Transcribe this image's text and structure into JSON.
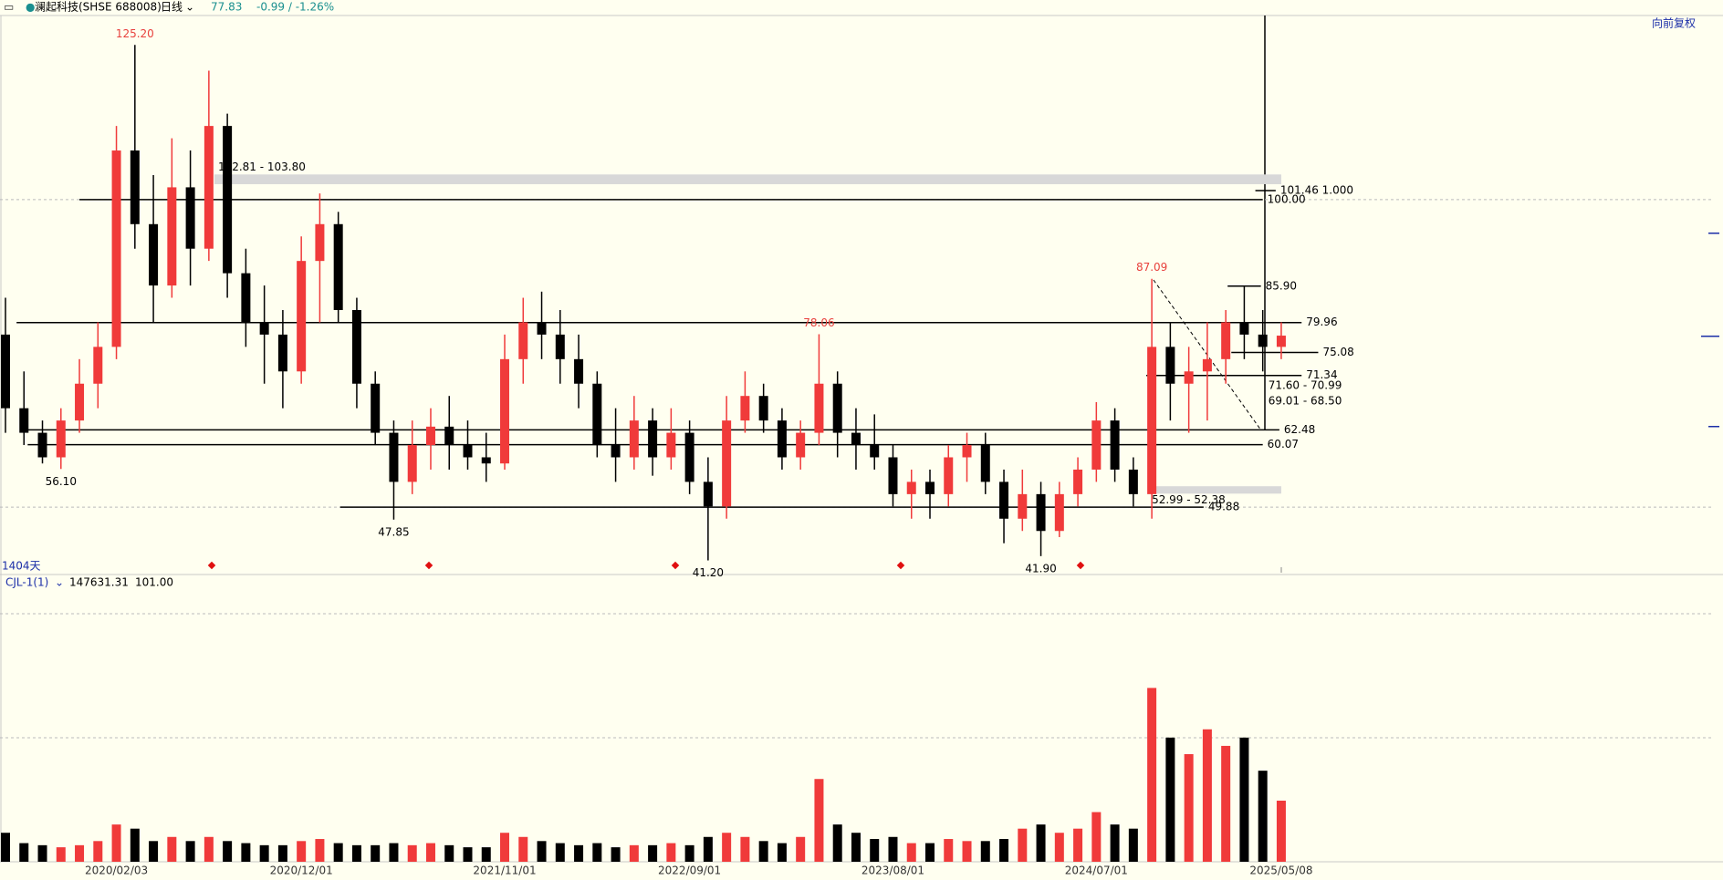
{
  "header": {
    "stock": "澜起科技(SHSE 688008)",
    "period": "日线",
    "price": "77.83",
    "change": "-0.99 / -1.26%",
    "adjust": "向前复权",
    "days": "1404天",
    "indicator": "CJL-1(1)",
    "indicator_value2": "101.00"
  },
  "chart_data": {
    "type": "candlestick",
    "categories": [
      null,
      null,
      null,
      null,
      null,
      null,
      "2020/02/03",
      null,
      null,
      null,
      null,
      null,
      null,
      null,
      null,
      null,
      "2020/12/01",
      null,
      null,
      null,
      null,
      null,
      null,
      null,
      null,
      null,
      null,
      "2021/11/01",
      null,
      null,
      null,
      null,
      null,
      null,
      null,
      null,
      null,
      "2022/09/01",
      null,
      null,
      null,
      null,
      null,
      null,
      null,
      null,
      null,
      null,
      "2023/08/01",
      null,
      null,
      null,
      null,
      null,
      null,
      null,
      null,
      null,
      null,
      "2024/07/01",
      null,
      null,
      null,
      null,
      null,
      null,
      null,
      null,
      null,
      "2025/05/08"
    ],
    "open": [
      78,
      66,
      62,
      58,
      64,
      70,
      76,
      108,
      96,
      86,
      102,
      92,
      112,
      88,
      80,
      78,
      72,
      90,
      96,
      82,
      70,
      62,
      54,
      60,
      63,
      60,
      58,
      57,
      74,
      80,
      78,
      74,
      70,
      60,
      58,
      64,
      58,
      62,
      54,
      50,
      64,
      68,
      64,
      58,
      62,
      70,
      62,
      60,
      58,
      52,
      54,
      52,
      58,
      60,
      54,
      48,
      52,
      46,
      52,
      56,
      64,
      56,
      52,
      76,
      70,
      72,
      74,
      80,
      78,
      76
    ],
    "high": [
      84,
      72,
      64,
      66,
      74,
      80,
      112,
      125.2,
      104,
      110,
      108,
      121,
      114,
      92,
      86,
      82,
      94,
      101,
      98,
      84,
      72,
      64,
      64,
      66,
      68,
      64,
      62,
      78,
      84,
      85,
      82,
      78,
      72,
      66,
      68,
      66,
      66,
      64,
      58,
      68,
      72,
      70,
      66,
      64,
      78.06,
      72,
      66,
      65,
      60,
      56,
      56,
      60,
      62,
      62,
      56,
      56,
      54,
      54,
      58,
      67,
      66,
      58,
      87.09,
      80,
      76,
      80,
      82,
      85.9,
      82,
      80
    ],
    "low": [
      62,
      60,
      57,
      56.1,
      62,
      66,
      74,
      92,
      80,
      84,
      86,
      90,
      84,
      76,
      70,
      66,
      70,
      80,
      80,
      66,
      60,
      47.85,
      52,
      56,
      56,
      56,
      54,
      56,
      70,
      74,
      70,
      66,
      58,
      54,
      56,
      55,
      56,
      52,
      41.2,
      48,
      62,
      62,
      56,
      56,
      60,
      58,
      56,
      56,
      50,
      48,
      48,
      50,
      54,
      52,
      44,
      46,
      41.9,
      45,
      50,
      54,
      54,
      50,
      48,
      64,
      62,
      64,
      70,
      74,
      72,
      74
    ],
    "close": [
      66,
      62,
      58,
      64,
      70,
      76,
      108,
      96,
      86,
      102,
      92,
      112,
      88,
      80,
      78,
      72,
      90,
      96,
      82,
      70,
      62,
      54,
      60,
      63,
      60,
      58,
      57,
      74,
      80,
      78,
      74,
      70,
      60,
      58,
      64,
      58,
      62,
      54,
      50,
      64,
      68,
      64,
      58,
      62,
      70,
      62,
      60,
      58,
      52,
      54,
      52,
      58,
      60,
      54,
      48,
      52,
      46,
      52,
      56,
      64,
      56,
      52,
      76,
      70,
      72,
      74,
      80,
      78,
      76,
      77.83
    ],
    "up_color": "#f03a3a",
    "down_color": "#000000",
    "ylim": [
      39.2,
      130
    ],
    "volume": {
      "values": [
        70000,
        45000,
        40000,
        35000,
        40000,
        50000,
        90000,
        80000,
        50000,
        60000,
        50000,
        60000,
        50000,
        45000,
        40000,
        40000,
        50000,
        55000,
        45000,
        40000,
        40000,
        45000,
        40000,
        45000,
        40000,
        35000,
        35000,
        70000,
        60000,
        50000,
        45000,
        40000,
        45000,
        35000,
        40000,
        40000,
        45000,
        40000,
        60000,
        70000,
        60000,
        50000,
        45000,
        60000,
        200000,
        90000,
        70000,
        55000,
        60000,
        45000,
        45000,
        55000,
        50000,
        50000,
        55000,
        80000,
        90000,
        70000,
        80000,
        120000,
        90000,
        80000,
        420000,
        300000,
        260000,
        320000,
        280000,
        300000,
        220000,
        147631.31
      ],
      "ylim": [
        0,
        650000
      ]
    },
    "levels": [
      {
        "value": 100,
        "label": "100.00",
        "from": 4,
        "to": 68,
        "grid": true
      },
      {
        "value": 101.46,
        "label": "101.46  1.000",
        "from": 67.6,
        "to": 68.7
      },
      {
        "value": 85.9,
        "label": "85.90",
        "from": 66.1,
        "to": 67.9
      },
      {
        "value": 79.96,
        "label": "79.96",
        "from": 0.6,
        "to": 70.1
      },
      {
        "value": 75.08,
        "label": "75.08",
        "from": 66.3,
        "to": 71
      },
      {
        "value": 71.34,
        "label": "71.34",
        "from": 61.7,
        "to": 70.1
      },
      {
        "value": 62.48,
        "label": "62.48",
        "from": 1,
        "to": 68.9
      },
      {
        "value": 60.07,
        "label": "60.07",
        "from": 1.2,
        "to": 68
      },
      {
        "value": 49.88,
        "label": "49.88",
        "from": 18.1,
        "to": 64.8,
        "grid": true
      }
    ],
    "bands": [
      {
        "low": 102.81,
        "high": 103.8,
        "label": "102.81 - 103.80",
        "from": 11.3,
        "to": 69,
        "label_side": "above",
        "shaded": true
      },
      {
        "low": 52.38,
        "high": 52.99,
        "label": "52.99 - 52.38",
        "from": 61.8,
        "to": 69,
        "label_side": "below",
        "shaded": true
      },
      {
        "low": 70.99,
        "high": 71.6,
        "label": "71.60 - 70.99",
        "from": 68.1,
        "to": 69,
        "label_side": "below",
        "shaded": false
      },
      {
        "low": 68.5,
        "high": 69.01,
        "label": "69.01 - 68.50",
        "from": 68.1,
        "to": 69,
        "label_side": "below",
        "shaded": false
      }
    ],
    "price_marks": [
      {
        "index": 7,
        "value": 125.2,
        "label": "125.20",
        "side": "above",
        "color": "#e8413c"
      },
      {
        "index": 3,
        "value": 56.1,
        "label": "56.10",
        "side": "below",
        "color": "#000000"
      },
      {
        "index": 21,
        "value": 47.85,
        "label": "47.85",
        "side": "below",
        "color": "#000000"
      },
      {
        "index": 38,
        "value": 41.2,
        "label": "41.20",
        "side": "below",
        "color": "#000000"
      },
      {
        "index": 56,
        "value": 41.9,
        "label": "41.90",
        "side": "below",
        "color": "#000000"
      },
      {
        "index": 44,
        "value": 78.06,
        "label": "78.06",
        "side": "above",
        "color": "#e8413c"
      },
      {
        "index": 62,
        "value": 87.09,
        "label": "87.09",
        "side": "above",
        "color": "#e8413c"
      }
    ]
  }
}
